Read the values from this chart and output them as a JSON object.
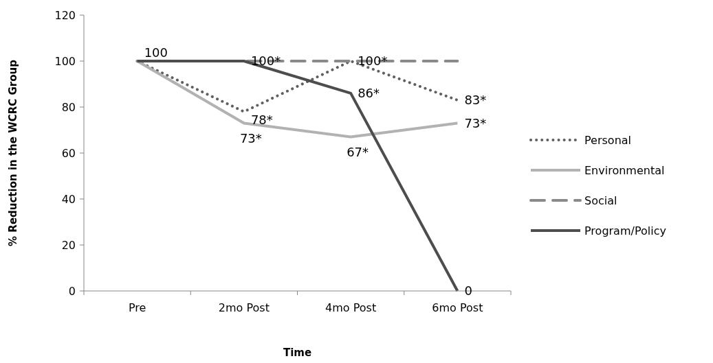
{
  "chart_data": {
    "type": "line",
    "xlabel": "Time",
    "ylabel": "% Reduction in the WCRC Group",
    "categories": [
      "Pre",
      "2mo Post",
      "4mo Post",
      "6mo Post"
    ],
    "ylim": [
      0,
      120
    ],
    "yticks": [
      0,
      20,
      40,
      60,
      80,
      100,
      120
    ],
    "grid": false,
    "legend": "right",
    "marker": "none",
    "series": [
      {
        "name": "Personal",
        "color": "#5f5f5f",
        "line_style": "dotted",
        "values": [
          100,
          78,
          100,
          83
        ],
        "value_labels": [
          null,
          "78*",
          "100*",
          "83*"
        ]
      },
      {
        "name": "Environmental",
        "color": "#b2b2b2",
        "line_style": "solid",
        "values": [
          100,
          73,
          67,
          73
        ],
        "value_labels": [
          null,
          "73*",
          "67*",
          "73*"
        ]
      },
      {
        "name": "Social",
        "color": "#8a8a8a",
        "line_style": "dashed",
        "values": [
          100,
          100,
          100,
          100
        ],
        "value_labels": [
          null,
          null,
          null,
          null
        ]
      },
      {
        "name": "Program/Policy",
        "color": "#4d4d4d",
        "line_style": "solid",
        "values": [
          100,
          100,
          86,
          0
        ],
        "value_labels": [
          "100",
          "100*",
          "86*",
          "0"
        ]
      }
    ]
  }
}
